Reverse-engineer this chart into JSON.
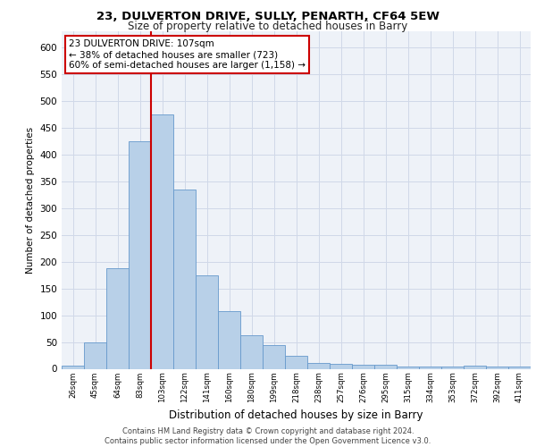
{
  "title1": "23, DULVERTON DRIVE, SULLY, PENARTH, CF64 5EW",
  "title2": "Size of property relative to detached houses in Barry",
  "xlabel": "Distribution of detached houses by size in Barry",
  "ylabel": "Number of detached properties",
  "categories": [
    "26sqm",
    "45sqm",
    "64sqm",
    "83sqm",
    "103sqm",
    "122sqm",
    "141sqm",
    "160sqm",
    "180sqm",
    "199sqm",
    "218sqm",
    "238sqm",
    "257sqm",
    "276sqm",
    "295sqm",
    "315sqm",
    "334sqm",
    "353sqm",
    "372sqm",
    "392sqm",
    "411sqm"
  ],
  "values": [
    6,
    50,
    188,
    425,
    475,
    335,
    175,
    107,
    62,
    44,
    24,
    11,
    10,
    8,
    7,
    5,
    4,
    4,
    6,
    4,
    4
  ],
  "bar_color": "#b8d0e8",
  "bar_edge_color": "#6699cc",
  "vline_index": 4,
  "vline_color": "#cc0000",
  "annotation_text": "23 DULVERTON DRIVE: 107sqm\n← 38% of detached houses are smaller (723)\n60% of semi-detached houses are larger (1,158) →",
  "annotation_box_facecolor": "#ffffff",
  "annotation_box_edgecolor": "#cc0000",
  "ylim": [
    0,
    630
  ],
  "yticks": [
    0,
    50,
    100,
    150,
    200,
    250,
    300,
    350,
    400,
    450,
    500,
    550,
    600
  ],
  "footer": "Contains HM Land Registry data © Crown copyright and database right 2024.\nContains public sector information licensed under the Open Government Licence v3.0.",
  "plot_bg_color": "#eef2f8",
  "grid_color": "#d0d8e8"
}
